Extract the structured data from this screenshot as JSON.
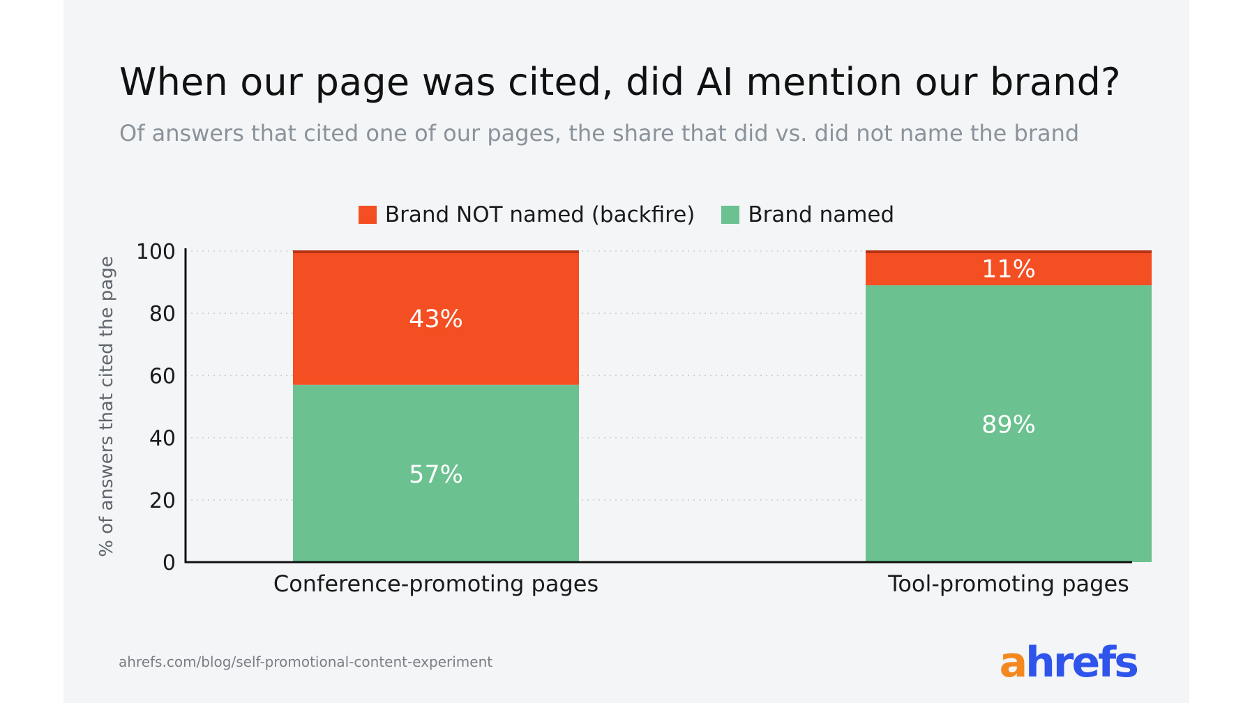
{
  "title": "When our page was cited, did AI mention our brand?",
  "subtitle": "Of answers that cited one of our pages, the share that did vs. did not name the brand",
  "source": "ahrefs.com/blog/self-promotional-content-experiment",
  "logo": {
    "first": "a",
    "rest": "hrefs"
  },
  "colors": {
    "not_named": "#f44f22",
    "named": "#6bc190",
    "not_named_top": "#b63212"
  },
  "chart_data": {
    "type": "bar",
    "stacked": true,
    "categories": [
      "Conference-promoting pages",
      "Tool-promoting pages"
    ],
    "series": [
      {
        "name": "Brand named",
        "values": [
          57,
          89
        ],
        "labels": [
          "57%",
          "89%"
        ]
      },
      {
        "name": "Brand NOT named (backfire)",
        "values": [
          43,
          11
        ],
        "labels": [
          "43%",
          "11%"
        ]
      }
    ],
    "legend": [
      "Brand NOT named (backfire)",
      "Brand named"
    ],
    "legend_position": "top-center",
    "ylabel": "% of answers that cited the page",
    "ylim": [
      0,
      100
    ],
    "yticks": [
      "0",
      "20",
      "40",
      "60",
      "80",
      "100"
    ],
    "grid": "horizontal-dotted"
  }
}
